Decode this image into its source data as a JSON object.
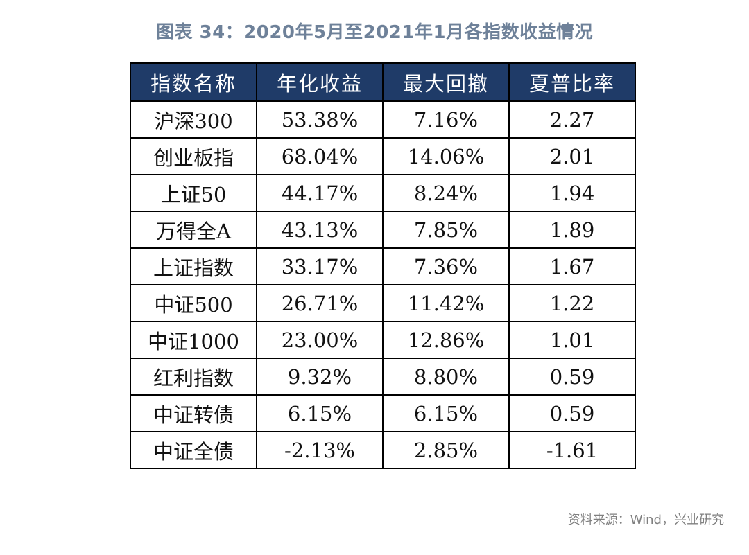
{
  "title": "图表 34：2020年5月至2021年1月各指数收益情况",
  "table": {
    "headers": [
      "指数名称",
      "年化收益",
      "最大回撤",
      "夏普比率"
    ],
    "rows": [
      [
        "沪深300",
        "53.38%",
        "7.16%",
        "2.27"
      ],
      [
        "创业板指",
        "68.04%",
        "14.06%",
        "2.01"
      ],
      [
        "上证50",
        "44.17%",
        "8.24%",
        "1.94"
      ],
      [
        "万得全A",
        "43.13%",
        "7.85%",
        "1.89"
      ],
      [
        "上证指数",
        "33.17%",
        "7.36%",
        "1.67"
      ],
      [
        "中证500",
        "26.71%",
        "11.42%",
        "1.22"
      ],
      [
        "中证1000",
        "23.00%",
        "12.86%",
        "1.01"
      ],
      [
        "红利指数",
        "9.32%",
        "8.80%",
        "0.59"
      ],
      [
        "中证转债",
        "6.15%",
        "6.15%",
        "0.59"
      ],
      [
        "中证全债",
        "-2.13%",
        "2.85%",
        "-1.61"
      ]
    ]
  },
  "source": "资料来源：Wind，兴业研究",
  "colors": {
    "header_bg": "#1f3b68",
    "header_text": "#ffffff",
    "title_text": "#6e8199",
    "source_text": "#7f7f7f"
  }
}
